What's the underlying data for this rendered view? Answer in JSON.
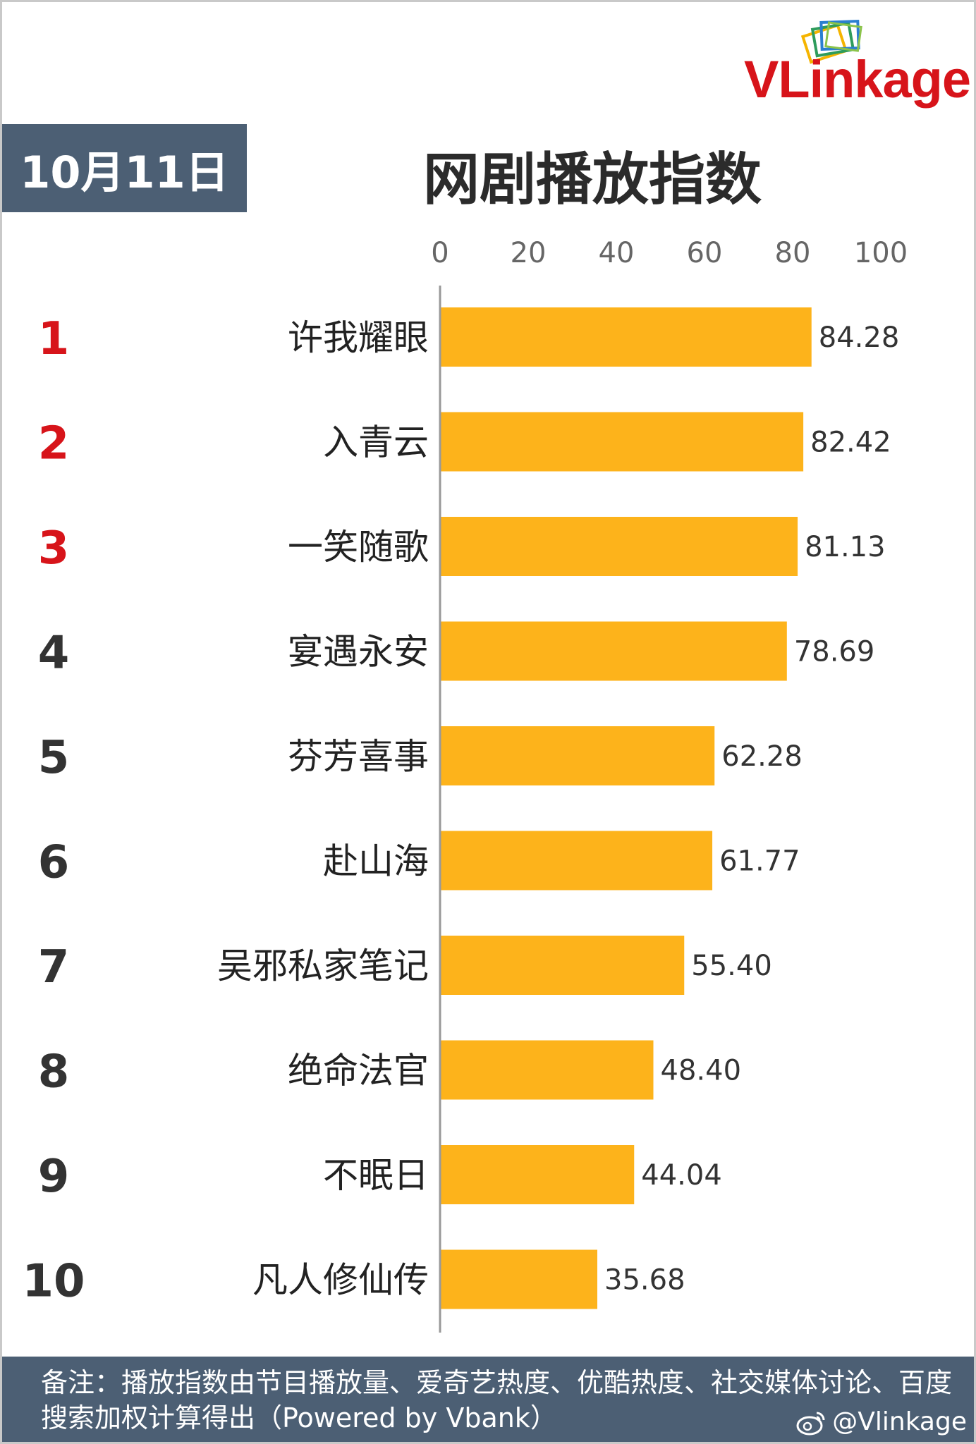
{
  "logo": {
    "text_vl": "VL",
    "text_rest": "inkage"
  },
  "date": "10月11日",
  "title": "网剧播放指数",
  "chart_data": {
    "type": "bar",
    "orientation": "horizontal",
    "title": "网剧播放指数",
    "xlim": [
      0,
      100
    ],
    "ticks": [
      "0",
      "20",
      "40",
      "60",
      "80",
      "100"
    ],
    "ranks": [
      "1",
      "2",
      "3",
      "4",
      "5",
      "6",
      "7",
      "8",
      "9",
      "10"
    ],
    "categories": [
      "许我耀眼",
      "入青云",
      "一笑随歌",
      "宴遇永安",
      "芬芳喜事",
      "赴山海",
      "吴邪私家笔记",
      "绝命法官",
      "不眠日",
      "凡人修仙传"
    ],
    "values": [
      84.28,
      82.42,
      81.13,
      78.69,
      62.28,
      61.77,
      55.4,
      48.4,
      44.04,
      35.68
    ],
    "value_labels": [
      "84.28",
      "82.42",
      "81.13",
      "78.69",
      "62.28",
      "61.77",
      "55.40",
      "48.40",
      "44.04",
      "35.68"
    ],
    "grid": false,
    "colors": {
      "bar": "#fdb31b",
      "rank_top": "#d7141a",
      "rank_other": "#333333",
      "axis": "#999999"
    }
  },
  "footer": {
    "note": "备注：播放指数由节目播放量、爱奇艺热度、优酷热度、社交媒体讨论、百度搜索加权计算得出（Powered by Vbank）",
    "weibo_handle": "@Vlinkage"
  }
}
